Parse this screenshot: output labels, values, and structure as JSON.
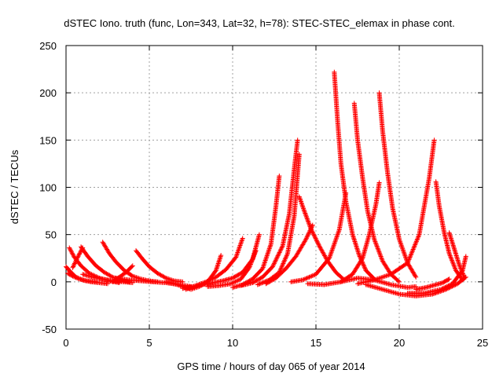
{
  "chart_data": {
    "type": "scatter",
    "title": "dSTEC Iono. truth (func, Lon=343, Lat=32, h=78): STEC-STEC_elemax in phase cont.",
    "xlabel": "GPS time / hours of day 065 of year 2014",
    "ylabel": "dSTEC  / TECUs",
    "xlim": [
      0,
      25
    ],
    "ylim": [
      -50,
      250
    ],
    "xticks": [
      0,
      5,
      10,
      15,
      20,
      25
    ],
    "yticks": [
      -50,
      0,
      50,
      100,
      150,
      200,
      250
    ],
    "xtick_labels": [
      "0",
      "5",
      "10",
      "15",
      "20",
      "25"
    ],
    "ytick_labels": [
      "-50",
      "0",
      "50",
      "100",
      "150",
      "200",
      "250"
    ],
    "grid": true,
    "marker": "plus",
    "color": "#ff0000",
    "series": [
      {
        "x": [
          0.0,
          0.3,
          0.6,
          1.0,
          1.5,
          2.0,
          2.5
        ],
        "values": [
          16,
          10,
          5,
          2,
          0,
          -1,
          -2
        ]
      },
      {
        "x": [
          0.2,
          0.5,
          0.9,
          1.4,
          2.0,
          2.6,
          3.2
        ],
        "values": [
          36,
          26,
          17,
          9,
          4,
          1,
          -1
        ]
      },
      {
        "x": [
          0.1,
          0.4,
          0.8,
          1.2,
          1.8
        ],
        "values": [
          9,
          6,
          3,
          1,
          0
        ]
      },
      {
        "x": [
          0.4,
          0.7,
          1.0
        ],
        "values": [
          15,
          26,
          36
        ]
      },
      {
        "x": [
          0.9,
          1.3,
          1.8,
          2.3,
          2.8,
          3.3,
          3.8
        ],
        "values": [
          37,
          27,
          17,
          10,
          5,
          2,
          0
        ]
      },
      {
        "x": [
          1.0,
          1.6,
          2.2,
          2.8,
          3.4,
          4.0
        ],
        "values": [
          8,
          5,
          3,
          1,
          0,
          -1
        ]
      },
      {
        "x": [
          2.2,
          2.6,
          3.0,
          3.5,
          4.0,
          4.5,
          5.0,
          5.5
        ],
        "values": [
          42,
          30,
          21,
          12,
          6,
          3,
          1,
          0
        ]
      },
      {
        "x": [
          2.8,
          3.2,
          3.6,
          4.0
        ],
        "values": [
          0,
          5,
          10,
          17
        ]
      },
      {
        "x": [
          4.2,
          4.6,
          5.0,
          5.5,
          6.0,
          6.5,
          7.0
        ],
        "values": [
          33,
          24,
          16,
          9,
          4,
          1,
          0
        ]
      },
      {
        "x": [
          3.0,
          3.8,
          4.5,
          5.2,
          6.0,
          6.8,
          7.5
        ],
        "values": [
          4,
          2,
          1,
          0,
          -1,
          -3,
          -5
        ]
      },
      {
        "x": [
          6.0,
          6.5,
          7.0,
          7.5,
          8.0,
          8.5,
          9.0,
          9.3
        ],
        "values": [
          0,
          -2,
          -5,
          -8,
          -5,
          0,
          12,
          28
        ]
      },
      {
        "x": [
          7.2,
          7.8,
          8.4,
          9.0,
          9.6,
          10.2,
          10.6
        ],
        "values": [
          -8,
          -4,
          0,
          5,
          13,
          26,
          46
        ]
      },
      {
        "x": [
          7.0,
          7.6,
          8.2,
          8.8,
          9.4,
          10.0,
          10.6,
          11.2,
          11.6
        ],
        "values": [
          -7,
          -5,
          -3,
          -1,
          1,
          4,
          10,
          24,
          50
        ]
      },
      {
        "x": [
          8.5,
          9.2,
          9.9,
          10.5,
          11.0,
          11.4
        ],
        "values": [
          -5,
          -4,
          -2,
          3,
          15,
          33
        ]
      },
      {
        "x": [
          10.0,
          10.6,
          11.2,
          11.8,
          12.3,
          12.6,
          12.8
        ],
        "values": [
          -6,
          -3,
          3,
          14,
          40,
          80,
          112
        ]
      },
      {
        "x": [
          10.5,
          11.2,
          11.8,
          12.4,
          13.0,
          13.4,
          13.7,
          13.9
        ],
        "values": [
          -4,
          -1,
          5,
          16,
          38,
          72,
          120,
          150
        ]
      },
      {
        "x": [
          11.5,
          12.2,
          12.8,
          13.3,
          13.7,
          14.0
        ],
        "values": [
          -3,
          2,
          10,
          30,
          70,
          135
        ]
      },
      {
        "x": [
          12.0,
          12.6,
          13.2,
          13.8,
          14.4,
          14.8
        ],
        "values": [
          -2,
          4,
          14,
          27,
          45,
          60
        ]
      },
      {
        "x": [
          14.0,
          14.3,
          14.7,
          15.2,
          15.7,
          16.2,
          16.7
        ],
        "values": [
          90,
          75,
          56,
          38,
          22,
          10,
          2
        ]
      },
      {
        "x": [
          13.5,
          14.2,
          15.0,
          15.8,
          16.4,
          16.8
        ],
        "values": [
          0,
          2,
          8,
          25,
          55,
          94
        ]
      },
      {
        "x": [
          16.1,
          16.3,
          16.5,
          16.8,
          17.2,
          17.6,
          18.0,
          18.5
        ],
        "values": [
          222,
          170,
          125,
          85,
          50,
          28,
          12,
          3
        ]
      },
      {
        "x": [
          17.3,
          17.5,
          17.8,
          18.1,
          18.5,
          19.0,
          19.5,
          20.0
        ],
        "values": [
          189,
          150,
          110,
          75,
          45,
          22,
          8,
          0
        ]
      },
      {
        "x": [
          16.5,
          17.2,
          17.8,
          18.2,
          18.6,
          18.8
        ],
        "values": [
          0,
          8,
          25,
          50,
          82,
          105
        ]
      },
      {
        "x": [
          18.8,
          19.0,
          19.3,
          19.6,
          20.0,
          20.5,
          21.0
        ],
        "values": [
          200,
          160,
          115,
          78,
          45,
          20,
          5
        ]
      },
      {
        "x": [
          17.5,
          18.5,
          19.5,
          20.5,
          21.2,
          21.8,
          22.1
        ],
        "values": [
          -2,
          2,
          8,
          20,
          50,
          110,
          150
        ]
      },
      {
        "x": [
          22.2,
          22.4,
          22.7,
          23.0,
          23.4,
          23.8
        ],
        "values": [
          106,
          80,
          52,
          30,
          12,
          2
        ]
      },
      {
        "x": [
          23.0,
          23.3,
          23.6,
          23.9
        ],
        "values": [
          52,
          35,
          18,
          5
        ]
      },
      {
        "x": [
          18.0,
          19.0,
          20.0,
          21.0,
          22.0,
          22.8,
          23.5,
          24.0
        ],
        "values": [
          -3,
          -8,
          -13,
          -15,
          -13,
          -8,
          -2,
          5
        ]
      },
      {
        "x": [
          20.5,
          21.5,
          22.5,
          23.2,
          23.8,
          24.0
        ],
        "values": [
          -12,
          -12,
          -8,
          -2,
          12,
          27
        ]
      },
      {
        "x": [
          14.5,
          15.5,
          16.5,
          17.5,
          18.5,
          19.5,
          20.5,
          21.0
        ],
        "values": [
          -2,
          -3,
          0,
          4,
          2,
          -3,
          -6,
          -5
        ]
      },
      {
        "x": [
          21.0,
          21.6,
          22.2,
          22.6,
          23.0
        ],
        "values": [
          -8,
          -6,
          -3,
          -1,
          3
        ]
      }
    ]
  }
}
